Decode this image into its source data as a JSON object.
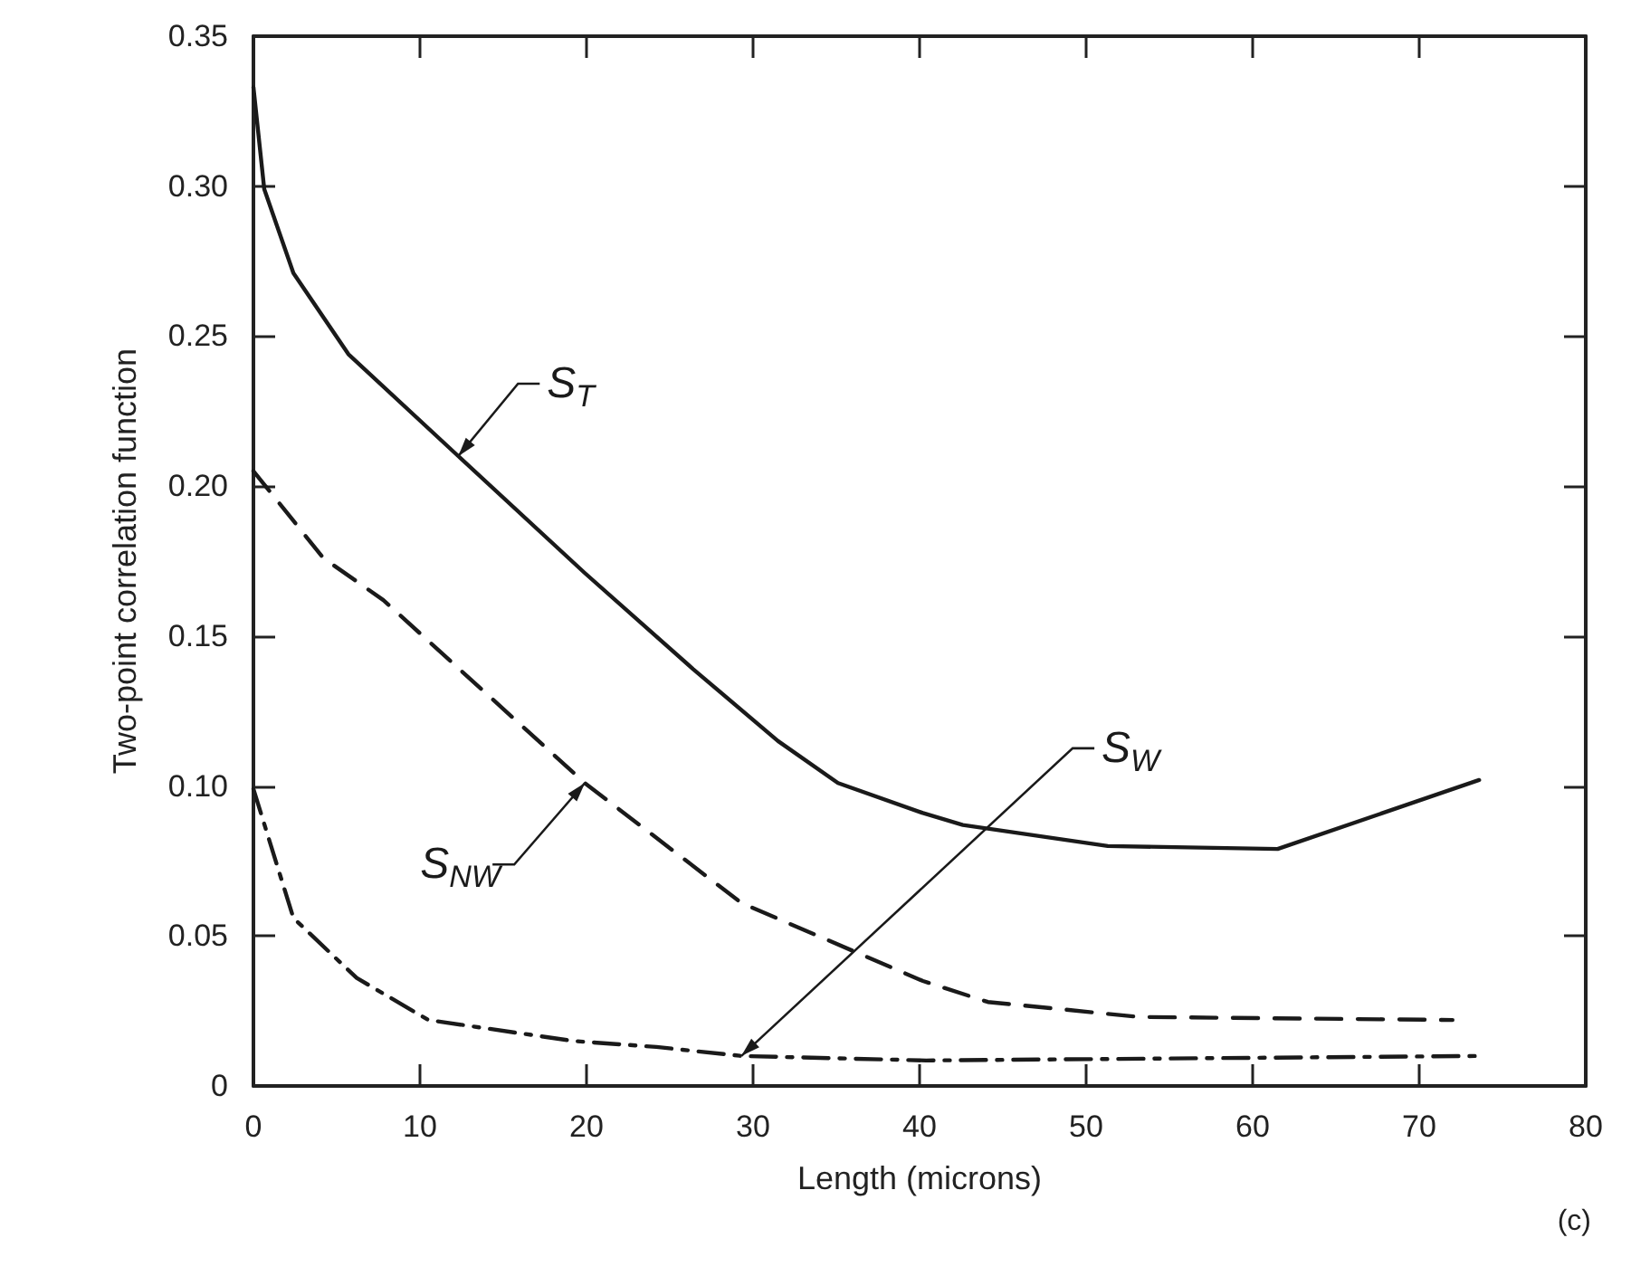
{
  "chart_data": {
    "type": "line",
    "xlabel": "Length (microns)",
    "ylabel": "Two-point correlation function",
    "xlim": [
      0,
      80
    ],
    "xticks": [
      0,
      10,
      20,
      30,
      40,
      50,
      60,
      70,
      80
    ],
    "ylim": [
      0,
      0.35
    ],
    "yticks": [
      0,
      0.05,
      {
        "value": 0.1,
        "label": "0.10"
      },
      0.15,
      {
        "value": 0.2,
        "label": "0.20"
      },
      0.25,
      {
        "value": 0.3,
        "label": "0.30"
      },
      0.35
    ],
    "grid": false,
    "legend": false,
    "marker": "none",
    "annotations": [
      "(c)"
    ],
    "series": [
      {
        "name": "S$_{T}$",
        "color": "#1a1a1a",
        "line_style": "solid",
        "x": [
          0,
          0.65,
          2.4,
          5.7,
          12.3,
          19.9,
          26.4,
          31.5,
          35.1,
          40.2,
          42.6,
          51.3,
          61.5,
          73.6
        ],
        "values": [
          0.333,
          0.299,
          0.271,
          0.244,
          0.21,
          0.171,
          0.139,
          0.115,
          0.101,
          0.091,
          0.087,
          0.08,
          0.079,
          0.102
        ]
      },
      {
        "name": "S$_{NW}$",
        "color": "#1a1a1a",
        "line_style": "dashed",
        "x": [
          0,
          4.2,
          7.8,
          19.9,
          29.3,
          40.2,
          44.1,
          53.2,
          72
        ],
        "values": [
          0.205,
          0.176,
          0.162,
          0.101,
          0.061,
          0.035,
          0.028,
          0.023,
          0.022
        ]
      },
      {
        "name": "S$_{W}$",
        "color": "#1a1a1a",
        "line_style": "dashdot",
        "x": [
          0,
          2.4,
          6.2,
          10.5,
          19.2,
          24.2,
          29.3,
          40.4,
          73.6
        ],
        "values": [
          0.099,
          0.056,
          0.036,
          0.022,
          0.015,
          0.013,
          0.01,
          0.0085,
          0.01
        ]
      }
    ]
  }
}
